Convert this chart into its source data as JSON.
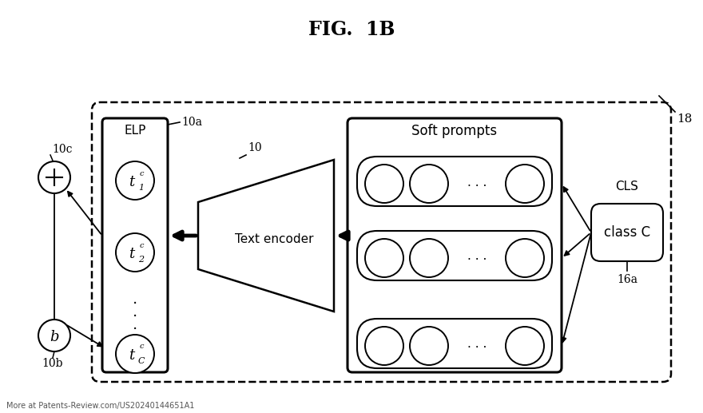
{
  "title": "FIG.  1B",
  "bg_color": "#ffffff",
  "fig_width": 8.8,
  "fig_height": 5.17,
  "watermark": "More at Patents-Review.com/US20240144651A1",
  "labels": {
    "10c": "10c",
    "10a": "10a",
    "10": "10",
    "10b": "10b",
    "18": "18",
    "16a": "16a",
    "CLS": "CLS",
    "b_circle": "b",
    "ELP": "ELP",
    "soft_prompts": "Soft prompts",
    "text_encoder": "Text encoder",
    "class_c": "class C"
  }
}
